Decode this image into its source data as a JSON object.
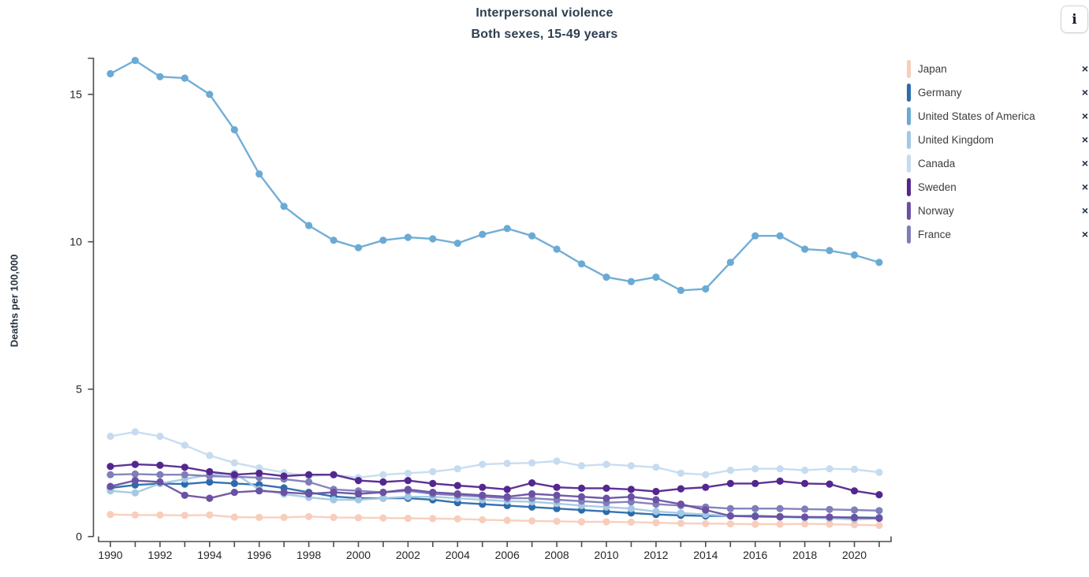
{
  "header": {
    "title": "Interpersonal violence",
    "subtitle": "Both sexes, 15-49 years",
    "info_button": "i"
  },
  "y_axis_label": "Deaths per 100,000",
  "legend": {
    "items": [
      {
        "label": "Japan",
        "color": "#f8cdbc",
        "remove": "×"
      },
      {
        "label": "Germany",
        "color": "#2c6cac",
        "remove": "×"
      },
      {
        "label": "United States of America",
        "color": "#6aaad5",
        "remove": "×"
      },
      {
        "label": "United Kingdom",
        "color": "#a3c8e3",
        "remove": "×"
      },
      {
        "label": "Canada",
        "color": "#c6dbef",
        "remove": "×"
      },
      {
        "label": "Sweden",
        "color": "#54278f",
        "remove": "×"
      },
      {
        "label": "Norway",
        "color": "#6a51a3",
        "remove": "×"
      },
      {
        "label": "France",
        "color": "#807dba",
        "remove": "×"
      }
    ]
  },
  "chart_data": {
    "type": "line",
    "title": "Interpersonal violence",
    "subtitle": "Both sexes, 15-49 years",
    "ylabel": "Deaths per 100,000",
    "xlabel": "",
    "ylim": [
      0,
      16.2
    ],
    "y_ticks": [
      0,
      5,
      10,
      15
    ],
    "grid": false,
    "legend_position": "right",
    "x": [
      1990,
      1991,
      1992,
      1993,
      1994,
      1995,
      1996,
      1997,
      1998,
      1999,
      2000,
      2001,
      2002,
      2003,
      2004,
      2005,
      2006,
      2007,
      2008,
      2009,
      2010,
      2011,
      2012,
      2013,
      2014,
      2015,
      2016,
      2017,
      2018,
      2019,
      2020,
      2021
    ],
    "x_tick_labels": [
      1990,
      1992,
      1994,
      1996,
      1998,
      2000,
      2002,
      2004,
      2006,
      2008,
      2010,
      2012,
      2014,
      2016,
      2018,
      2020
    ],
    "series": [
      {
        "name": "Japan",
        "color": "#f8cdbc",
        "values": [
          0.75,
          0.73,
          0.73,
          0.72,
          0.73,
          0.66,
          0.65,
          0.65,
          0.68,
          0.65,
          0.64,
          0.63,
          0.62,
          0.61,
          0.6,
          0.57,
          0.55,
          0.53,
          0.52,
          0.5,
          0.5,
          0.49,
          0.47,
          0.45,
          0.44,
          0.43,
          0.42,
          0.42,
          0.43,
          0.42,
          0.4,
          0.38
        ]
      },
      {
        "name": "Germany",
        "color": "#2c6cac",
        "values": [
          1.65,
          1.75,
          1.8,
          1.78,
          1.85,
          1.8,
          1.76,
          1.65,
          1.5,
          1.36,
          1.3,
          1.3,
          1.3,
          1.25,
          1.15,
          1.1,
          1.05,
          1.0,
          0.95,
          0.9,
          0.85,
          0.8,
          0.75,
          0.72,
          0.7,
          0.7,
          0.7,
          0.68,
          0.66,
          0.65,
          0.65,
          0.64
        ]
      },
      {
        "name": "United States of America",
        "color": "#6aaad5",
        "values": [
          15.7,
          16.15,
          15.6,
          15.55,
          15.0,
          13.8,
          12.3,
          11.2,
          10.55,
          10.05,
          9.8,
          10.05,
          10.15,
          10.1,
          9.95,
          10.25,
          10.45,
          10.2,
          9.75,
          9.25,
          8.8,
          8.65,
          8.8,
          8.35,
          8.4,
          9.3,
          10.2,
          10.2,
          9.75,
          9.7,
          9.55,
          9.3
        ]
      },
      {
        "name": "United Kingdom",
        "color": "#a3c8e3",
        "values": [
          1.55,
          1.48,
          1.8,
          1.95,
          2.1,
          2.15,
          1.6,
          1.44,
          1.33,
          1.25,
          1.25,
          1.3,
          1.35,
          1.35,
          1.3,
          1.25,
          1.2,
          1.18,
          1.12,
          1.05,
          1.0,
          0.95,
          0.85,
          0.8,
          0.75,
          0.7,
          0.68,
          0.66,
          0.64,
          0.62,
          0.58,
          0.62
        ]
      },
      {
        "name": "Canada",
        "color": "#c6dbef",
        "values": [
          3.4,
          3.55,
          3.4,
          3.1,
          2.75,
          2.5,
          2.33,
          2.17,
          2.05,
          2.1,
          2.0,
          2.1,
          2.15,
          2.2,
          2.3,
          2.45,
          2.48,
          2.5,
          2.56,
          2.4,
          2.45,
          2.4,
          2.35,
          2.15,
          2.1,
          2.25,
          2.3,
          2.3,
          2.25,
          2.3,
          2.28,
          2.18
        ]
      },
      {
        "name": "France",
        "color": "#807dba",
        "values": [
          2.1,
          2.12,
          2.1,
          2.1,
          2.05,
          2.03,
          2.0,
          1.95,
          1.85,
          1.6,
          1.55,
          1.5,
          1.55,
          1.45,
          1.4,
          1.35,
          1.3,
          1.3,
          1.25,
          1.2,
          1.15,
          1.18,
          1.1,
          1.05,
          1.0,
          0.95,
          0.95,
          0.95,
          0.93,
          0.92,
          0.9,
          0.88
        ]
      },
      {
        "name": "Norway",
        "color": "#6a51a3",
        "values": [
          1.7,
          1.9,
          1.85,
          1.4,
          1.3,
          1.5,
          1.55,
          1.5,
          1.45,
          1.5,
          1.45,
          1.5,
          1.6,
          1.5,
          1.45,
          1.4,
          1.35,
          1.45,
          1.4,
          1.35,
          1.3,
          1.35,
          1.25,
          1.1,
          0.9,
          0.7,
          0.68,
          0.67,
          0.66,
          0.66,
          0.64,
          0.62
        ]
      },
      {
        "name": "Sweden",
        "color": "#54278f",
        "values": [
          2.38,
          2.45,
          2.42,
          2.35,
          2.2,
          2.1,
          2.15,
          2.05,
          2.1,
          2.1,
          1.9,
          1.85,
          1.9,
          1.8,
          1.73,
          1.67,
          1.6,
          1.82,
          1.67,
          1.64,
          1.64,
          1.6,
          1.53,
          1.62,
          1.67,
          1.8,
          1.8,
          1.88,
          1.8,
          1.78,
          1.55,
          1.42
        ]
      }
    ]
  }
}
